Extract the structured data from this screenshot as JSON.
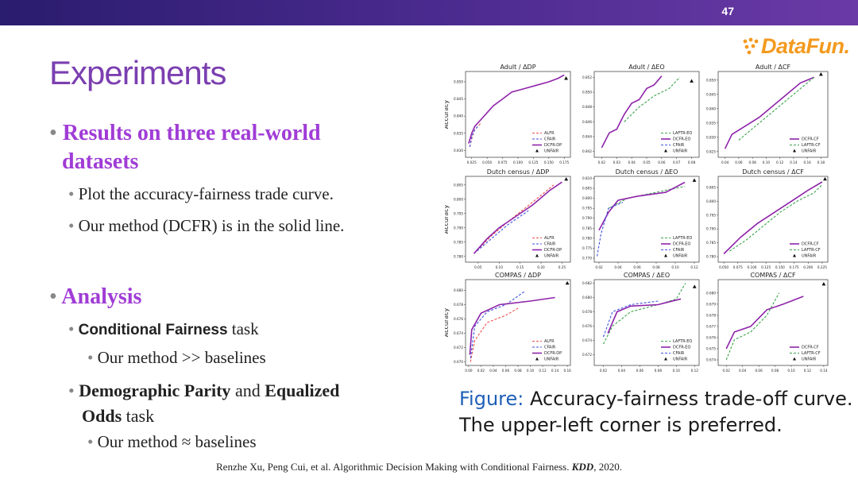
{
  "page_number": "47",
  "logo": {
    "text": "DataFun."
  },
  "title": "Experiments",
  "bullets": {
    "results_heading": "Results on three real-world datasets",
    "results_line1": "Results on three real-world",
    "results_line2": "datasets",
    "plot_text": "Plot the accuracy-fairness trade curve.",
    "method_text": "Our method (DCFR) is in the solid line.",
    "analysis_heading": "Analysis",
    "cond_bold": "Conditional Fairness",
    "cond_rest": " task",
    "cond_sub": "Our method >> baselines",
    "dp_bold1": "Demographic Parity",
    "dp_mid": " and ",
    "dp_bold2": "Equalized",
    "dp_line2_bold": "Odds",
    "dp_line2_rest": " task",
    "dp_sub": "Our method ≈ baselines"
  },
  "caption": {
    "label": "Figure:",
    "line1_rest": " Accuracy-fairness trade-off curve.",
    "line2": "The upper-left corner is preferred."
  },
  "citation": {
    "authors": "Renzhe Xu, Peng Cui, et al. Algorithmic Decision Making with Conditional Fairness. ",
    "venue": "KDD",
    "year": ", 2020."
  },
  "colors": {
    "purple": "#8e24aa",
    "red": "#f0504a",
    "blue": "#3f51e0",
    "green": "#3aa34a",
    "title": "#7b3fb0",
    "bullet": "#a03cd6",
    "caption_label": "#1f5fb8"
  },
  "chart_data": [
    {
      "title": "Adult / ΔDP",
      "type": "line",
      "ylabel": "Accuracy",
      "xticks": [
        "0.025",
        "0.050",
        "0.075",
        "0.100",
        "0.125",
        "0.150",
        "0.175"
      ],
      "yticks": [
        "0.830",
        "0.835",
        "0.840",
        "0.845",
        "0.850"
      ],
      "xlim": [
        0.015,
        0.185
      ],
      "ylim": [
        0.828,
        0.853
      ],
      "legend": [
        "ALFR",
        "CFAIR",
        "DCFR-DP",
        "UNFAIR"
      ],
      "series": [
        {
          "name": "ALFR",
          "style": "red",
          "x": [
            0.022,
            0.026,
            0.03,
            0.04
          ],
          "y": [
            0.831,
            0.834,
            0.836,
            0.838
          ]
        },
        {
          "name": "CFAIR",
          "style": "blue",
          "x": [
            0.022,
            0.025,
            0.03,
            0.035
          ],
          "y": [
            0.831,
            0.834,
            0.836,
            0.837
          ]
        },
        {
          "name": "DCFR-DP",
          "style": "purple",
          "x": [
            0.02,
            0.025,
            0.03,
            0.04,
            0.05,
            0.06,
            0.075,
            0.09,
            0.11,
            0.13,
            0.15,
            0.165,
            0.175
          ],
          "y": [
            0.832,
            0.835,
            0.837,
            0.839,
            0.841,
            0.843,
            0.845,
            0.847,
            0.848,
            0.849,
            0.85,
            0.851,
            0.852
          ]
        }
      ],
      "unfair": [
        0.178,
        0.851
      ]
    },
    {
      "title": "Adult / ΔEO",
      "type": "line",
      "ylabel": "",
      "xticks": [
        "0.02",
        "0.03",
        "0.04",
        "0.05",
        "0.06",
        "0.07",
        "0.08"
      ],
      "yticks": [
        "0.842",
        "0.844",
        "0.846",
        "0.848",
        "0.850",
        "0.852"
      ],
      "xlim": [
        0.015,
        0.085
      ],
      "ylim": [
        0.8412,
        0.8528
      ],
      "legend": [
        "LAFTR-EO",
        "DCFR-EO",
        "CFAIR",
        "UNFAIR"
      ],
      "series": [
        {
          "name": "LAFTR-EO",
          "style": "green",
          "x": [
            0.035,
            0.045,
            0.055,
            0.065,
            0.072
          ],
          "y": [
            0.846,
            0.848,
            0.8495,
            0.8505,
            0.852
          ]
        },
        {
          "name": "DCFR-EO",
          "style": "purple",
          "x": [
            0.02,
            0.025,
            0.03,
            0.035,
            0.04,
            0.045,
            0.05,
            0.055,
            0.06
          ],
          "y": [
            0.8425,
            0.8445,
            0.845,
            0.847,
            0.8485,
            0.849,
            0.8505,
            0.851,
            0.8522
          ]
        }
      ],
      "unfair": [
        0.08,
        0.8515
      ]
    },
    {
      "title": "Adult / ΔCF",
      "type": "line",
      "ylabel": "",
      "xticks": [
        "0.04",
        "0.06",
        "0.08",
        "0.10",
        "0.12",
        "0.14",
        "0.16",
        "0.18"
      ],
      "yticks": [
        "0.825",
        "0.830",
        "0.835",
        "0.840",
        "0.845",
        "0.850"
      ],
      "xlim": [
        0.03,
        0.19
      ],
      "ylim": [
        0.823,
        0.853
      ],
      "legend": [
        "DCFR-CF",
        "LAFTR-CF",
        "UNFAIR"
      ],
      "series": [
        {
          "name": "DCFR-CF",
          "style": "purple",
          "x": [
            0.04,
            0.05,
            0.07,
            0.09,
            0.11,
            0.13,
            0.15,
            0.17
          ],
          "y": [
            0.826,
            0.831,
            0.834,
            0.837,
            0.841,
            0.845,
            0.849,
            0.851
          ]
        },
        {
          "name": "LAFTR-CF",
          "style": "green",
          "x": [
            0.06,
            0.08,
            0.1,
            0.12,
            0.14,
            0.16,
            0.17
          ],
          "y": [
            0.829,
            0.833,
            0.837,
            0.841,
            0.845,
            0.849,
            0.851
          ]
        }
      ],
      "unfair": [
        0.18,
        0.852
      ]
    },
    {
      "title": "Dutch census / ΔDP",
      "type": "line",
      "ylabel": "Accuracy",
      "xticks": [
        "0.05",
        "0.10",
        "0.15",
        "0.20",
        "0.25"
      ],
      "yticks": [
        "0.780",
        "0.785",
        "0.790",
        "0.795",
        "0.800",
        "0.805"
      ],
      "xlim": [
        0.02,
        0.27
      ],
      "ylim": [
        0.778,
        0.808
      ],
      "legend": [
        "ALFR",
        "CFAIR",
        "DCFR-DP",
        "UNFAIR"
      ],
      "series": [
        {
          "name": "ALFR",
          "style": "red",
          "x": [
            0.04,
            0.08,
            0.12,
            0.18,
            0.23
          ],
          "y": [
            0.781,
            0.787,
            0.792,
            0.799,
            0.805
          ]
        },
        {
          "name": "CFAIR",
          "style": "blue",
          "x": [
            0.04,
            0.08,
            0.12,
            0.17
          ],
          "y": [
            0.781,
            0.786,
            0.791,
            0.796
          ]
        },
        {
          "name": "DCFR-DP",
          "style": "purple",
          "x": [
            0.04,
            0.07,
            0.1,
            0.14,
            0.18,
            0.22,
            0.25
          ],
          "y": [
            0.781,
            0.786,
            0.79,
            0.794,
            0.798,
            0.803,
            0.806
          ]
        }
      ],
      "unfair": [
        0.26,
        0.807
      ]
    },
    {
      "title": "Dutch census / ΔEO",
      "type": "line",
      "ylabel": "",
      "xticks": [
        "0.02",
        "0.04",
        "0.06",
        "0.08",
        "0.10",
        "0.12"
      ],
      "yticks": [
        "0.770",
        "0.775",
        "0.780",
        "0.785",
        "0.790",
        "0.795",
        "0.800",
        "0.805",
        "0.810"
      ],
      "xlim": [
        0.015,
        0.125
      ],
      "ylim": [
        0.768,
        0.811
      ],
      "legend": [
        "LAFTR-EO",
        "DCFR-EO",
        "CFAIR",
        "UNFAIR"
      ],
      "series": [
        {
          "name": "LAFTR-EO",
          "style": "green",
          "x": [
            0.03,
            0.05,
            0.08,
            0.11
          ],
          "y": [
            0.795,
            0.8,
            0.803,
            0.806
          ]
        },
        {
          "name": "DCFR-EO",
          "style": "purple",
          "x": [
            0.02,
            0.03,
            0.04,
            0.06,
            0.09,
            0.11
          ],
          "y": [
            0.784,
            0.793,
            0.799,
            0.801,
            0.803,
            0.808
          ]
        },
        {
          "name": "CFAIR",
          "style": "blue",
          "x": [
            0.018,
            0.022,
            0.03,
            0.045
          ],
          "y": [
            0.771,
            0.782,
            0.795,
            0.798
          ]
        }
      ],
      "unfair": [
        0.12,
        0.809
      ]
    },
    {
      "title": "Dutch census / ΔCF",
      "type": "line",
      "ylabel": "",
      "xticks": [
        "0.050",
        "0.075",
        "0.100",
        "0.125",
        "0.150",
        "0.175",
        "0.200",
        "0.225"
      ],
      "yticks": [
        "0.780",
        "0.785",
        "0.790",
        "0.795",
        "0.800",
        "0.805"
      ],
      "xlim": [
        0.04,
        0.235
      ],
      "ylim": [
        0.778,
        0.809
      ],
      "legend": [
        "DCFR-CF",
        "LAFTR-CF",
        "UNFAIR"
      ],
      "series": [
        {
          "name": "DCFR-CF",
          "style": "purple",
          "x": [
            0.05,
            0.08,
            0.11,
            0.14,
            0.17,
            0.2,
            0.225
          ],
          "y": [
            0.781,
            0.787,
            0.792,
            0.796,
            0.8,
            0.804,
            0.807
          ]
        },
        {
          "name": "LAFTR-CF",
          "style": "green",
          "x": [
            0.06,
            0.09,
            0.12,
            0.15,
            0.18,
            0.21,
            0.225
          ],
          "y": [
            0.782,
            0.786,
            0.791,
            0.796,
            0.8,
            0.803,
            0.806
          ]
        }
      ],
      "unfair": [
        0.23,
        0.808
      ]
    },
    {
      "title": "COMPAS / ΔDP",
      "type": "line",
      "ylabel": "Accuracy",
      "xticks": [
        "0.00",
        "0.02",
        "0.04",
        "0.06",
        "0.08",
        "0.10",
        "0.12",
        "0.14",
        "0.16"
      ],
      "yticks": [
        "0.670",
        "0.672",
        "0.674",
        "0.676",
        "0.678",
        "0.680"
      ],
      "xlim": [
        -0.005,
        0.165
      ],
      "ylim": [
        0.6695,
        0.6815
      ],
      "legend": [
        "ALFR",
        "CFAIR",
        "DCFR-DP",
        "UNFAIR"
      ],
      "series": [
        {
          "name": "ALFR",
          "style": "red",
          "x": [
            0.003,
            0.01,
            0.03,
            0.06,
            0.08
          ],
          "y": [
            0.67,
            0.673,
            0.6755,
            0.6765,
            0.6775
          ]
        },
        {
          "name": "CFAIR",
          "style": "blue",
          "x": [
            0.003,
            0.01,
            0.03,
            0.06,
            0.09
          ],
          "y": [
            0.6705,
            0.675,
            0.677,
            0.678,
            0.6798
          ]
        },
        {
          "name": "DCFR-DP",
          "style": "purple",
          "x": [
            0.002,
            0.005,
            0.02,
            0.05,
            0.1,
            0.14
          ],
          "y": [
            0.671,
            0.6745,
            0.6768,
            0.678,
            0.6785,
            0.679
          ]
        }
      ],
      "unfair": [
        0.16,
        0.681
      ]
    },
    {
      "title": "COMPAS / ΔEO",
      "type": "line",
      "ylabel": "",
      "xticks": [
        "0.02",
        "0.04",
        "0.06",
        "0.08",
        "0.10",
        "0.12"
      ],
      "yticks": [
        "0.672",
        "0.674",
        "0.676",
        "0.678",
        "0.680",
        "0.682"
      ],
      "xlim": [
        0.01,
        0.125
      ],
      "ylim": [
        0.6705,
        0.6825
      ],
      "legend": [
        "LAFTR-EO",
        "DCFR-EO",
        "CFAIR",
        "UNFAIR"
      ],
      "series": [
        {
          "name": "LAFTR-EO",
          "style": "green",
          "x": [
            0.02,
            0.03,
            0.05,
            0.08,
            0.1,
            0.11
          ],
          "y": [
            0.6735,
            0.676,
            0.678,
            0.679,
            0.6798,
            0.682
          ]
        },
        {
          "name": "DCFR-EO",
          "style": "purple",
          "x": [
            0.025,
            0.035,
            0.05,
            0.08,
            0.105
          ],
          "y": [
            0.675,
            0.678,
            0.6788,
            0.679,
            0.6798
          ]
        },
        {
          "name": "CFAIR",
          "style": "blue",
          "x": [
            0.02,
            0.03,
            0.05,
            0.08
          ],
          "y": [
            0.6745,
            0.678,
            0.679,
            0.6795
          ]
        }
      ],
      "unfair": [
        0.12,
        0.6815
      ]
    },
    {
      "title": "COMPAS / ΔCF",
      "type": "line",
      "ylabel": "",
      "xticks": [
        "0.02",
        "0.04",
        "0.06",
        "0.08",
        "0.10",
        "0.12",
        "0.14"
      ],
      "yticks": [
        "0.674",
        "0.675",
        "0.676",
        "0.677",
        "0.678",
        "0.679",
        "0.680"
      ],
      "xlim": [
        0.01,
        0.145
      ],
      "ylim": [
        0.6735,
        0.6812
      ],
      "legend": [
        "DCFR-CF",
        "LAFTR-CF",
        "UNFAIR"
      ],
      "series": [
        {
          "name": "DCFR-CF",
          "style": "purple",
          "x": [
            0.02,
            0.03,
            0.05,
            0.07,
            0.09,
            0.115
          ],
          "y": [
            0.675,
            0.6765,
            0.677,
            0.6785,
            0.679,
            0.6797
          ]
        },
        {
          "name": "LAFTR-CF",
          "style": "green",
          "x": [
            0.02,
            0.03,
            0.05,
            0.07,
            0.085
          ],
          "y": [
            0.674,
            0.6758,
            0.6765,
            0.678,
            0.68
          ]
        }
      ],
      "unfair": [
        0.14,
        0.6808
      ]
    }
  ]
}
